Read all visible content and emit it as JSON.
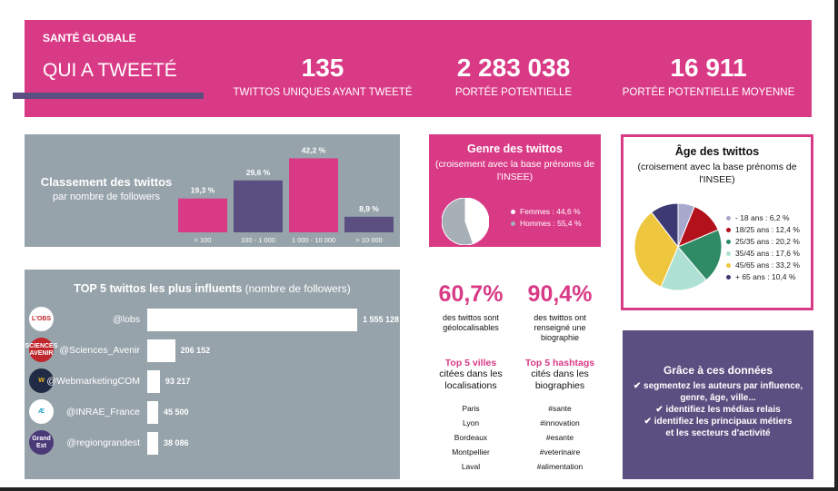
{
  "header": {
    "section": "SANTÉ GLOBALE",
    "title": "QUI A TWEETÉ",
    "kpis": [
      {
        "value": "135",
        "label": "TWITTOS UNIQUES AYANT TWEETÉ"
      },
      {
        "value": "2 283 038",
        "label": "PORTÉE POTENTIELLE"
      },
      {
        "value": "16 911",
        "label": "PORTÉE POTENTIELLE MOYENNE"
      }
    ],
    "colors": {
      "pink": "#d93a86",
      "purple": "#5a4f80",
      "grey": "#97a3ab"
    }
  },
  "followers": {
    "title": "Classement des twittos",
    "subtitle": "par nombre de followers"
  },
  "top5": {
    "title": "TOP 5 twittos les plus influents",
    "title_suffix": "(nombre de followers)"
  },
  "genre": {
    "title": "Genre des twittos",
    "subtitle": "(croisement avec la base prénoms de l'INSEE)"
  },
  "age": {
    "title": "Âge des twittos",
    "subtitle": "(croisement avec la base prénoms de l'INSEE)"
  },
  "stats": {
    "geo": {
      "value": "60,7%",
      "desc": "des twittos sont géolocalisables"
    },
    "bio": {
      "value": "90,4%",
      "desc": "des twittos ont renseigné une biographie"
    }
  },
  "top_villes": {
    "head": "Top 5 villes",
    "sub": "citées dans les localisations",
    "items": [
      "Paris",
      "Lyon",
      "Bordeaux",
      "Montpellier",
      "Laval"
    ]
  },
  "top_hashtags": {
    "head": "Top 5 hashtags",
    "sub": "cités dans les biographies",
    "items": [
      "#sante",
      "#innovation",
      "#esante",
      "#veterinaire",
      "#alimentation"
    ]
  },
  "grace": {
    "title": "Grâce à ces données",
    "lines": [
      "✔ segmentez les auteurs par influence,",
      "genre, âge, ville...",
      "✔ identifiez les médias relais",
      "✔ identifiez les principaux métiers",
      "et les secteurs d'activité"
    ]
  },
  "chart_data": [
    {
      "type": "bar",
      "title": "Classement des twittos par nombre de followers",
      "categories": [
        "< 100",
        "100 - 1 000",
        "1 000 - 10 000",
        "> 10 000"
      ],
      "values": [
        19.3,
        29.6,
        42.2,
        8.9
      ],
      "labels": [
        "19,3 %",
        "29,6 %",
        "42,2 %",
        "8,9 %"
      ],
      "colors": [
        "#d93a86",
        "#5a4f80",
        "#d93a86",
        "#5a4f80"
      ],
      "ylim": [
        0,
        45
      ]
    },
    {
      "type": "bar",
      "title": "TOP 5 twittos les plus influents (nombre de followers)",
      "orientation": "horizontal",
      "categories": [
        "@lobs",
        "@Sciences_Avenir",
        "@WebmarketingCOM",
        "@INRAE_France",
        "@regiongrandest"
      ],
      "values": [
        1555128,
        206152,
        93217,
        45500,
        38086
      ],
      "labels": [
        "1 555 128",
        "206 152",
        "93 217",
        "45 500",
        "38 086"
      ],
      "logos": [
        {
          "text": "L'OBS",
          "bg": "#ffffff",
          "fg": "#c0262c"
        },
        {
          "text": "SCIENCES AVENIR",
          "bg": "#c0262c",
          "fg": "#ffffff"
        },
        {
          "text": "W",
          "bg": "#1f2a44",
          "fg": "#f2b826"
        },
        {
          "text": "Æ",
          "bg": "#ffffff",
          "fg": "#2aa3c8"
        },
        {
          "text": "Grand Est",
          "bg": "#4b3a78",
          "fg": "#ffffff"
        }
      ]
    },
    {
      "type": "pie",
      "title": "Genre des twittos",
      "categories": [
        "Femmes",
        "Hommes"
      ],
      "values": [
        44.6,
        55.4
      ],
      "labels": [
        "Femmes : 44,6 %",
        "Hommes : 55,4 %"
      ],
      "colors": [
        "#ffffff",
        "#a7b0b7"
      ]
    },
    {
      "type": "pie",
      "title": "Âge des twittos",
      "categories": [
        "- 18 ans",
        "18/25 ans",
        "25/35 ans",
        "35/45 ans",
        "45/65 ans",
        "+ 65 ans"
      ],
      "values": [
        6.2,
        12.4,
        20.2,
        17.6,
        33.2,
        10.4
      ],
      "labels": [
        "- 18 ans : 6,2 %",
        "18/25 ans : 12,4 %",
        "25/35 ans : 20,2 %",
        "35/45 ans : 17,6 %",
        "45/65 ans : 33,2 %",
        "+ 65 ans : 10,4 %"
      ],
      "colors": [
        "#a8a8cc",
        "#b3121d",
        "#2f8a66",
        "#aee0d4",
        "#efc73e",
        "#3d3a73"
      ]
    }
  ]
}
